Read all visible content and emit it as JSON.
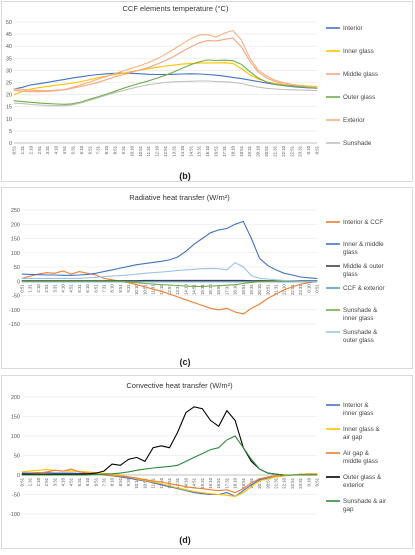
{
  "chart_data": [
    {
      "type": "line",
      "panel_label": "(b)",
      "title": "CCF elements temperature (°C)",
      "ylim": [
        0,
        50
      ],
      "yticks": [
        0,
        5,
        10,
        15,
        20,
        25,
        30,
        35,
        40,
        45,
        50
      ],
      "x": [
        "0:51",
        "1:31",
        "2:10",
        "2:51",
        "3:31",
        "4:10",
        "4:51",
        "5:31",
        "6:10",
        "6:51",
        "7:31",
        "8:10",
        "8:51",
        "9:31",
        "10:10",
        "10:51",
        "11:31",
        "12:10",
        "12:51",
        "13:31",
        "14:10",
        "14:51",
        "15:31",
        "16:10",
        "16:51",
        "17:31",
        "18:10",
        "18:51",
        "19:31",
        "20:10",
        "20:51",
        "21:31",
        "22:10",
        "22:51",
        "23:31",
        "0:10",
        "0:51"
      ],
      "series": [
        {
          "name": "Interior",
          "color": "#4472C4",
          "values": [
            22.3,
            23,
            24,
            24.5,
            25.1,
            25.7,
            26.3,
            26.9,
            27.4,
            27.9,
            28.3,
            28.6,
            28.8,
            28.9,
            28.8,
            28.6,
            28.4,
            28.3,
            28.3,
            28.4,
            28.5,
            28.6,
            28.5,
            28.3,
            28,
            27.6,
            27.1,
            26.6,
            26,
            25.4,
            24.8,
            24.2,
            23.7,
            23.3,
            23,
            22.8,
            22.6
          ]
        },
        {
          "name": "Inner glass",
          "color": "#FFC000",
          "values": [
            20,
            21.3,
            22.3,
            22.9,
            23.4,
            23.9,
            24.3,
            24.8,
            25.4,
            26.2,
            27,
            27.7,
            28.3,
            28.9,
            29.5,
            30.1,
            30.7,
            31.3,
            31.8,
            32.2,
            32.6,
            32.8,
            33,
            33.1,
            33.1,
            33.2,
            32.9,
            30.8,
            28.2,
            26.5,
            25.3,
            24.6,
            24.2,
            24,
            23.7,
            23.5,
            23.3
          ]
        },
        {
          "name": "Middle glass",
          "color": "#F4A582",
          "values": [
            21.8,
            21.4,
            21.2,
            21.2,
            21.3,
            21.6,
            22,
            22.7,
            23.4,
            24.2,
            25.1,
            26.2,
            27.3,
            28.3,
            29.3,
            30.2,
            31.3,
            32.6,
            34.1,
            35.8,
            37.8,
            39.7,
            41.4,
            42.3,
            42.2,
            42.8,
            43.4,
            39.8,
            33.9,
            29.4,
            26.9,
            25.4,
            24.4,
            23.7,
            23.3,
            23,
            22.5
          ]
        },
        {
          "name": "Outer glass",
          "color": "#70AD47",
          "values": [
            17.5,
            17.1,
            16.8,
            16.5,
            16.3,
            16.1,
            16,
            16.2,
            17,
            18.1,
            19.1,
            20.2,
            21.4,
            22.6,
            23.7,
            24.7,
            25.7,
            26.8,
            28,
            29.4,
            30.9,
            32.4,
            33.5,
            34.3,
            34.1,
            34.2,
            34,
            32.5,
            29.5,
            26.9,
            25.2,
            24.3,
            23.8,
            23.5,
            23.2,
            23,
            22.7
          ]
        },
        {
          "name": "Exterior",
          "color": "#F4B183",
          "values": [
            22.3,
            22.2,
            21.8,
            21.6,
            21.6,
            21.8,
            22.1,
            23,
            24.1,
            25.2,
            26.4,
            27.5,
            28.7,
            29.8,
            30.9,
            32,
            33.3,
            34.8,
            36.7,
            38.8,
            41,
            43.1,
            44.6,
            44.8,
            43.8,
            45.4,
            46.5,
            42.6,
            35.2,
            30.2,
            27.7,
            26,
            25,
            24.2,
            23.8,
            23.4,
            23
          ]
        },
        {
          "name": "Sunshade",
          "color": "#BFBFBF",
          "values": [
            16.5,
            16.3,
            15.9,
            15.7,
            15.5,
            15.4,
            15.4,
            15.8,
            16.6,
            17.6,
            18.7,
            19.8,
            20.8,
            21.7,
            22.6,
            23.4,
            24.1,
            24.6,
            25,
            25.3,
            25.4,
            25.5,
            25.6,
            25.6,
            25.4,
            25.3,
            25.1,
            24.6,
            23.8,
            23.1,
            22.6,
            22.3,
            22.1,
            22,
            21.9,
            21.8,
            21.6
          ]
        }
      ]
    },
    {
      "type": "line",
      "panel_label": "(c)",
      "title": "Radiative heat transfer (W/m²)",
      "ylim": [
        -150,
        250
      ],
      "yticks": [
        -150,
        -100,
        -50,
        0,
        50,
        100,
        150,
        200,
        250
      ],
      "x": [
        "0:51",
        "1:31",
        "2:10",
        "2:51",
        "3:31",
        "4:10",
        "4:51",
        "5:31",
        "6:10",
        "6:51",
        "7:31",
        "8:10",
        "8:51",
        "9:31",
        "10:10",
        "10:51",
        "11:31",
        "12:10",
        "12:51",
        "13:31",
        "14:10",
        "14:51",
        "15:31",
        "16:10",
        "16:51",
        "17:31",
        "18:10",
        "18:51",
        "19:31",
        "20:10",
        "20:51",
        "21:31",
        "22:10",
        "22:51",
        "23:31",
        "0:10",
        "0:51"
      ],
      "series": [
        {
          "name": "Interior & CCF",
          "color": "#ED7D31",
          "values": [
            10,
            18,
            25,
            30,
            28,
            36,
            25,
            34,
            28,
            22,
            10,
            5,
            0,
            -5,
            -12,
            -20,
            -28,
            -35,
            -45,
            -55,
            -65,
            -75,
            -85,
            -95,
            -100,
            -95,
            -108,
            -115,
            -95,
            -80,
            -60,
            -45,
            -30,
            -20,
            -10,
            -5,
            0
          ]
        },
        {
          "name": "Inner & middle glass",
          "color": "#4472C4",
          "values": [
            25,
            24,
            23,
            22,
            22,
            21,
            21,
            22,
            24,
            28,
            34,
            40,
            46,
            52,
            58,
            62,
            66,
            70,
            75,
            85,
            105,
            130,
            150,
            170,
            180,
            185,
            200,
            210,
            150,
            80,
            55,
            40,
            28,
            22,
            15,
            12,
            10
          ]
        },
        {
          "name": "Middle & outer glass",
          "color": "#404040",
          "values": [
            2,
            2,
            2,
            2,
            2,
            2,
            2,
            2,
            2,
            2,
            2,
            2,
            2,
            2,
            2,
            3,
            3,
            3,
            3,
            3,
            3,
            3,
            3,
            3,
            3,
            3,
            3,
            3,
            2,
            2,
            2,
            2,
            2,
            2,
            2,
            2,
            2
          ]
        },
        {
          "name": "CCF & exterior",
          "color": "#5B9BD5",
          "values": [
            -2,
            -2,
            -2,
            -2,
            -2,
            -2,
            -2,
            -2,
            -2,
            -2,
            -2,
            -2,
            -2,
            -2,
            -2,
            -2,
            -2,
            -2,
            -2,
            -2,
            -2,
            -2,
            -2,
            -2,
            -2,
            -2,
            -2,
            -2,
            -2,
            -2,
            -2,
            -2,
            -2,
            -2,
            -2,
            -2,
            -2
          ]
        },
        {
          "name": "Sunshade & inner glass",
          "color": "#70AD47",
          "values": [
            0,
            0,
            0,
            0,
            0,
            0,
            0,
            0,
            0,
            0,
            0,
            0,
            0,
            -3,
            -5,
            -8,
            -10,
            -12,
            -13,
            -15,
            -17,
            -18,
            -18,
            -17,
            -16,
            -14,
            -12,
            -8,
            -4,
            -2,
            0,
            0,
            0,
            0,
            0,
            0,
            0
          ]
        },
        {
          "name": "Sunshade & outer glass",
          "color": "#9DC3E6",
          "values": [
            10,
            10,
            10,
            10,
            10,
            10,
            10,
            10,
            12,
            14,
            16,
            18,
            20,
            22,
            25,
            28,
            30,
            32,
            35,
            38,
            40,
            42,
            44,
            45,
            44,
            40,
            65,
            50,
            20,
            10,
            8,
            5,
            3,
            2,
            0,
            0,
            0
          ]
        }
      ]
    },
    {
      "type": "line",
      "panel_label": "(d)",
      "title": "Convective heat transfer (W/m²)",
      "ylim": [
        -100,
        200
      ],
      "yticks": [
        -100,
        -50,
        0,
        50,
        100,
        150,
        200
      ],
      "x": [
        "0:51",
        "1:31",
        "2:10",
        "2:51",
        "3:31",
        "4:10",
        "4:51",
        "5:31",
        "6:10",
        "6:51",
        "7:31",
        "8:10",
        "8:51",
        "9:31",
        "10:10",
        "10:51",
        "11:31",
        "12:10",
        "12:51",
        "13:31",
        "14:10",
        "14:51",
        "15:31",
        "16:10",
        "16:51",
        "17:31",
        "18:10",
        "18:51",
        "19:31",
        "20:10",
        "20:51",
        "21:31",
        "22:10",
        "22:51",
        "23:31",
        "0:10",
        "0:51"
      ],
      "series": [
        {
          "name": "Interior & inner glass",
          "color": "#4472C4",
          "values": [
            5,
            5,
            6,
            6,
            5,
            5,
            5,
            4,
            3,
            2,
            0,
            -2,
            -5,
            -8,
            -12,
            -15,
            -20,
            -25,
            -30,
            -35,
            -40,
            -45,
            -48,
            -50,
            -50,
            -45,
            -55,
            -40,
            -25,
            -12,
            -8,
            -5,
            -2,
            0,
            2,
            3,
            3
          ]
        },
        {
          "name": "Inner glass & air gap",
          "color": "#FFC000",
          "values": [
            8,
            10,
            12,
            14,
            12,
            10,
            10,
            9,
            8,
            6,
            4,
            2,
            0,
            -5,
            -10,
            -14,
            -18,
            -22,
            -28,
            -33,
            -38,
            -42,
            -45,
            -48,
            -50,
            -52,
            -55,
            -45,
            -30,
            -15,
            -10,
            -5,
            -2,
            0,
            2,
            3,
            3
          ]
        },
        {
          "name": "Air gap & middle glass",
          "color": "#ED7D31",
          "values": [
            2,
            3,
            5,
            8,
            12,
            10,
            15,
            8,
            5,
            3,
            0,
            -2,
            -3,
            -5,
            -8,
            -12,
            -15,
            -18,
            -22,
            -26,
            -30,
            -33,
            -35,
            -38,
            -40,
            -38,
            -45,
            -35,
            -20,
            -10,
            -5,
            -2,
            0,
            0,
            1,
            1,
            1
          ]
        },
        {
          "name": "Outer glass & exterior",
          "color": "#000000",
          "values": [
            2,
            2,
            2,
            2,
            2,
            2,
            2,
            2,
            3,
            5,
            10,
            28,
            25,
            40,
            45,
            35,
            70,
            75,
            70,
            110,
            160,
            175,
            170,
            140,
            125,
            165,
            140,
            70,
            35,
            15,
            5,
            2,
            0,
            0,
            0,
            0,
            0
          ]
        },
        {
          "name": "Sunshade & air gap",
          "color": "#2E8B3E",
          "values": [
            0,
            0,
            0,
            0,
            0,
            0,
            0,
            0,
            0,
            1,
            2,
            3,
            5,
            8,
            12,
            15,
            18,
            20,
            22,
            25,
            35,
            45,
            55,
            65,
            70,
            90,
            100,
            70,
            40,
            15,
            5,
            2,
            0,
            0,
            0,
            0,
            0
          ]
        }
      ]
    }
  ]
}
